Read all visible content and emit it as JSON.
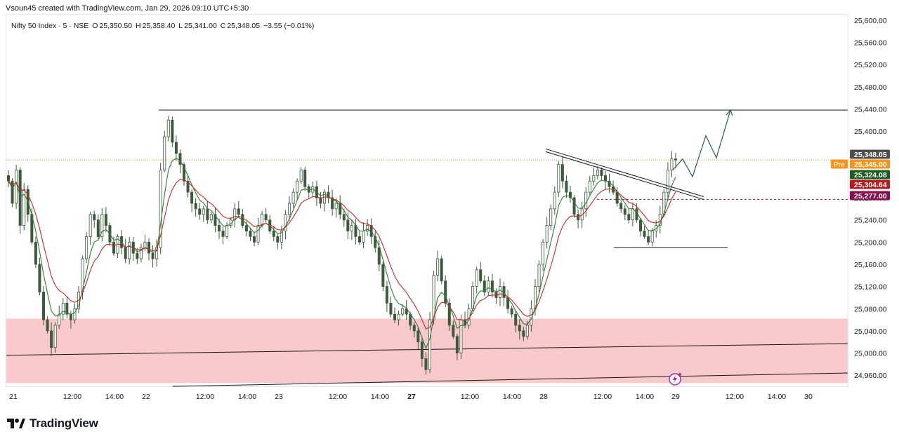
{
  "caption": "Vsoun45 created with TradingView.com, Jan 29, 2026 09:10 UTC+5:30",
  "header": {
    "symbol": "Nifty 50 Index · 5 · NSE",
    "open_label": "O",
    "open": "25,350.50",
    "high_label": "H",
    "high": "25,358.40",
    "low_label": "L",
    "low": "25,341.00",
    "close_label": "C",
    "close": "25,348.05",
    "change": "−3.55 (−0.01%)"
  },
  "logo_text": "TradingView",
  "colors": {
    "up": "#4a6b4a",
    "down": "#4a6b4a",
    "ema_fast": "#2e7d32",
    "ema_slow": "#c62828",
    "zone": "#f9c9cc",
    "last_price_tag": "#4d4d4d",
    "pre_tag": "#f7931a",
    "green_tag": "#1b5e20",
    "red_tag": "#b71c1c",
    "maroon_tag": "#880e4f"
  },
  "chart_data": {
    "type": "candlestick",
    "title": "Nifty 50 Index · 5 · NSE",
    "y_ticks": [
      "24,960.00",
      "25,000.00",
      "25,040.00",
      "25,080.00",
      "25,120.00",
      "25,160.00",
      "25,200.00",
      "25,240.00",
      "25,280.00",
      "25,320.00",
      "25,360.00",
      "25,400.00",
      "25,440.00",
      "25,480.00",
      "25,520.00",
      "25,560.00",
      "25,600.00"
    ],
    "ylim": [
      24940,
      25610
    ],
    "x_ticks": [
      "21",
      "12:00",
      "14:00",
      "22",
      "12:00",
      "14:00",
      "23",
      "12:00",
      "14:00",
      "27",
      "12:00",
      "14:00",
      "28",
      "12:00",
      "14:00",
      "29",
      "12:00",
      "14:00",
      "30"
    ],
    "price_labels": [
      {
        "name": "last",
        "value": "25,348.05"
      },
      {
        "name": "pre",
        "label": "Pre",
        "value": "25,345.00"
      },
      {
        "name": "ema_fast",
        "value": "25,324.08"
      },
      {
        "name": "ema_slow",
        "value": "25,304.64"
      },
      {
        "name": "level",
        "value": "25,277.00"
      }
    ],
    "zone": {
      "from": 24946,
      "to": 25062
    },
    "horizontal_levels": [
      25438,
      25190
    ],
    "dashed_level": 25277,
    "price_path": [
      [
        25310,
        25270,
        25330,
        25230,
        25295,
        25250,
        25200,
        25160,
        25110,
        25060,
        25040,
        25010,
        25050,
        25070,
        25090,
        25070,
        25060,
        25080,
        25110,
        25170,
        25210,
        25250,
        25240,
        25210,
        25250,
        25230,
        25200,
        25180,
        25210,
        25190,
        25170,
        25200,
        25180,
        25170,
        25190,
        25200,
        25180,
        25170,
        25190,
        25330,
        25390,
        25420,
        25380,
        25360,
        25340,
        25310,
        25290,
        25270,
        25260,
        25250,
        25260,
        25240,
        25250,
        25230,
        25220,
        25210,
        25230,
        25240,
        25260,
        25250,
        25230,
        25220,
        25210,
        25200,
        25230,
        25250,
        25240,
        25220,
        25210,
        25200,
        25220,
        25250,
        25270,
        25290,
        25310,
        25330,
        25300,
        25290,
        25300,
        25280,
        25270,
        25290,
        25280,
        25260,
        25270,
        25250,
        25240,
        25220,
        25230,
        25210,
        25200,
        25220,
        25230,
        25210,
        25190,
        25160,
        25120,
        25090,
        25070,
        25060,
        25070,
        25080,
        25070,
        25050,
        25040,
        25020,
        24990,
        24970,
        25060,
        25140,
        25170,
        25130,
        25090,
        25050,
        25030,
        25000,
        25060,
        25050,
        25080,
        25120,
        25150,
        25130,
        25110,
        25130,
        25110,
        25100,
        25120,
        25100,
        25080,
        25070,
        25050,
        25040,
        25030,
        25050,
        25080,
        25120,
        25160,
        25200,
        25230,
        25260,
        25290,
        25340,
        25310,
        25290,
        25280,
        25250,
        25240,
        25260,
        25290,
        25310,
        25320,
        25330,
        25320,
        25310,
        25300,
        25290,
        25270,
        25260,
        25250,
        25240,
        25260,
        25240,
        25220,
        25210,
        25200,
        25220,
        25230,
        25250,
        25290,
        25330,
        25350,
        25348
      ]
    ],
    "projection": [
      [
        25348,
        25320
      ],
      [
        25385,
        25300
      ],
      [
        25400,
        25360
      ],
      [
        25440,
        25420
      ]
    ]
  }
}
